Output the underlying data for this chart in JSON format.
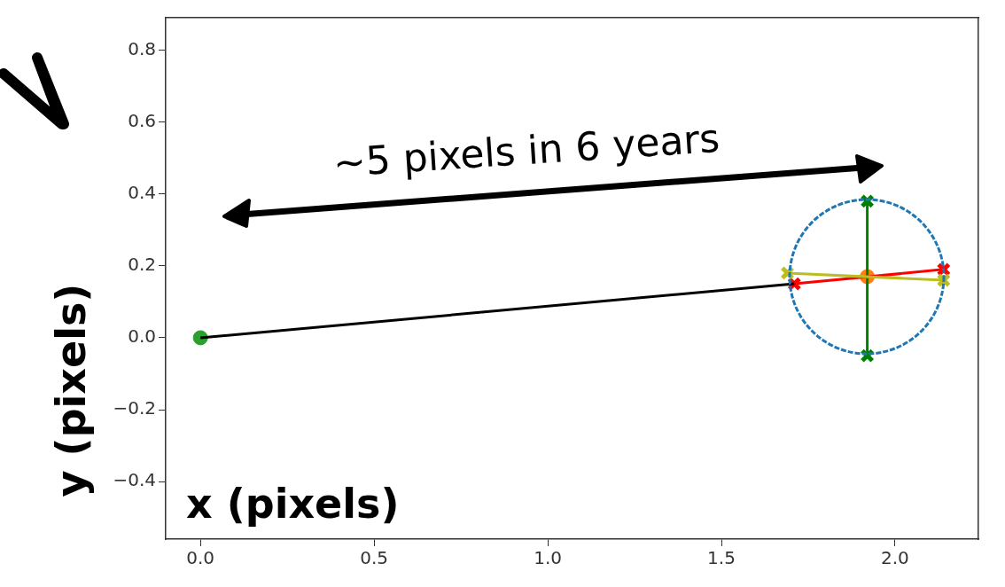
{
  "chart_data": {
    "type": "line",
    "xlabel": "x (pixels)",
    "ylabel": "y (pixels)",
    "annotations": [
      "~5 pixels in 6 years"
    ],
    "xlim": [
      -0.1,
      2.24
    ],
    "ylim": [
      -0.56,
      0.89
    ],
    "xticks": [
      {
        "value": 0,
        "label": "0.0"
      },
      {
        "value": 0.5,
        "label": "0.5"
      },
      {
        "value": 1,
        "label": "1.0"
      },
      {
        "value": 1.5,
        "label": "1.5"
      },
      {
        "value": 2,
        "label": "2.0"
      }
    ],
    "yticks": [
      {
        "value": -0.4,
        "label": "−0.4"
      },
      {
        "value": -0.2,
        "label": "−0.2"
      },
      {
        "value": 0,
        "label": "0.0"
      },
      {
        "value": 0.2,
        "label": "0.2"
      },
      {
        "value": 0.4,
        "label": "0.4"
      },
      {
        "value": 0.6,
        "label": "0.6"
      },
      {
        "value": 0.8,
        "label": "0.8"
      }
    ],
    "grid": false,
    "legend": false,
    "series": [
      {
        "color": "#000000",
        "marker": "none",
        "x": [
          0,
          1.71
        ],
        "values": [
          0,
          0.15
        ]
      },
      {
        "color": "#2ca02c",
        "marker": "circle",
        "x": [
          0
        ],
        "values": [
          0
        ]
      },
      {
        "color": "#bcbd22",
        "marker": "cross",
        "x": [
          1.69,
          2.14
        ],
        "values": [
          0.18,
          0.16
        ]
      },
      {
        "color": "#ff0000",
        "marker": "cross",
        "x": [
          1.71,
          2.14
        ],
        "values": [
          0.15,
          0.19
        ]
      },
      {
        "color": "#008000",
        "marker": "cross",
        "x": [
          1.92,
          1.92
        ],
        "values": [
          -0.05,
          0.38
        ]
      },
      {
        "color": "#ff7f0e",
        "marker": "circle",
        "x": [
          1.92
        ],
        "values": [
          0.17
        ]
      }
    ]
  }
}
